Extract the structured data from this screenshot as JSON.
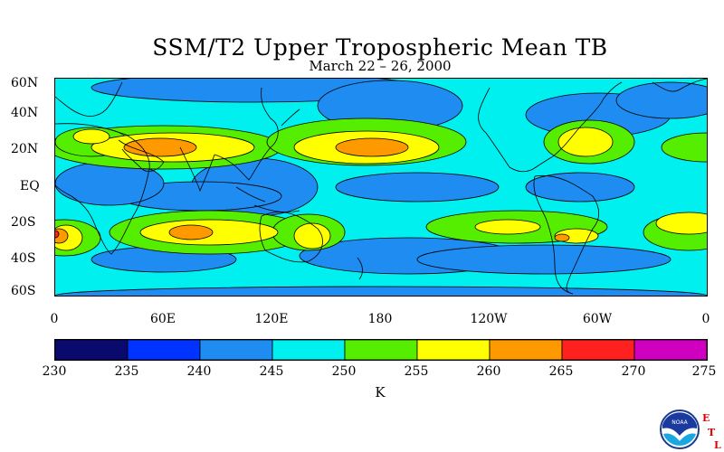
{
  "title": "SSM/T2 Upper Tropospheric Mean TB",
  "subtitle": "March 22 – 26, 2000",
  "lat_labels": [
    "60N",
    "40N",
    "20N",
    "EQ",
    "20S",
    "40S",
    "60S"
  ],
  "lon_labels": [
    "0",
    "60E",
    "120E",
    "180",
    "120W",
    "60W",
    "0"
  ],
  "colorbar": {
    "ticks": [
      "230",
      "235",
      "240",
      "245",
      "250",
      "255",
      "260",
      "265",
      "270",
      "275"
    ],
    "colors": [
      "#0a0a6e",
      "#0033ff",
      "#1e8cf0",
      "#00f0f0",
      "#55ee00",
      "#ffff00",
      "#ff9900",
      "#ff2020",
      "#d000c0"
    ],
    "units": "K"
  },
  "logo": {
    "icon": "noaa-logo",
    "text": [
      "E",
      "T",
      "L"
    ]
  },
  "map_data": {
    "background_level": 3,
    "lat_range": [
      -60,
      60
    ],
    "lon_range": [
      0,
      360
    ],
    "blobs": [
      {
        "lon": 110,
        "lat": 55,
        "rx": 90,
        "ry": 8,
        "level": 2
      },
      {
        "lon": 185,
        "lat": 45,
        "rx": 40,
        "ry": 14,
        "level": 2
      },
      {
        "lon": 300,
        "lat": 40,
        "rx": 40,
        "ry": 12,
        "level": 2
      },
      {
        "lon": 340,
        "lat": 48,
        "rx": 30,
        "ry": 10,
        "level": 2
      },
      {
        "lon": 100,
        "lat": 60,
        "rx": 10,
        "ry": 4,
        "level": 1
      },
      {
        "lon": 145,
        "lat": 59,
        "rx": 6,
        "ry": 3,
        "level": 1
      },
      {
        "lon": 110,
        "lat": 0,
        "rx": 35,
        "ry": 16,
        "level": 2
      },
      {
        "lon": 100,
        "lat": 0,
        "rx": 5,
        "ry": 3,
        "level": 1
      },
      {
        "lon": 80,
        "lat": -5,
        "rx": 45,
        "ry": 8,
        "level": 2
      },
      {
        "lon": 30,
        "lat": 2,
        "rx": 30,
        "ry": 12,
        "level": 2
      },
      {
        "lon": 200,
        "lat": 0,
        "rx": 45,
        "ry": 8,
        "level": 2
      },
      {
        "lon": 290,
        "lat": 0,
        "rx": 30,
        "ry": 8,
        "level": 2
      },
      {
        "lon": 292,
        "lat": 0,
        "rx": 3,
        "ry": 2,
        "level": 1
      },
      {
        "lon": 195,
        "lat": -38,
        "rx": 60,
        "ry": 10,
        "level": 2
      },
      {
        "lon": 270,
        "lat": -40,
        "rx": 70,
        "ry": 8,
        "level": 2
      },
      {
        "lon": 60,
        "lat": -40,
        "rx": 40,
        "ry": 7,
        "level": 2
      },
      {
        "lon": 180,
        "lat": -60,
        "rx": 180,
        "ry": 5,
        "level": 2
      },
      {
        "lon": 60,
        "lat": 22,
        "rx": 65,
        "ry": 12,
        "level": 4
      },
      {
        "lon": 20,
        "lat": 25,
        "rx": 20,
        "ry": 8,
        "level": 4
      },
      {
        "lon": 172,
        "lat": 25,
        "rx": 55,
        "ry": 13,
        "level": 4
      },
      {
        "lon": 295,
        "lat": 25,
        "rx": 25,
        "ry": 12,
        "level": 4
      },
      {
        "lon": 360,
        "lat": 22,
        "rx": 25,
        "ry": 8,
        "level": 4
      },
      {
        "lon": 85,
        "lat": -25,
        "rx": 55,
        "ry": 12,
        "level": 4
      },
      {
        "lon": 140,
        "lat": -25,
        "rx": 20,
        "ry": 10,
        "level": 4
      },
      {
        "lon": 5,
        "lat": -28,
        "rx": 20,
        "ry": 10,
        "level": 4
      },
      {
        "lon": 255,
        "lat": -22,
        "rx": 50,
        "ry": 9,
        "level": 4
      },
      {
        "lon": 350,
        "lat": -25,
        "rx": 25,
        "ry": 10,
        "level": 4
      },
      {
        "lon": 65,
        "lat": 22,
        "rx": 45,
        "ry": 8,
        "level": 5
      },
      {
        "lon": 20,
        "lat": 28,
        "rx": 10,
        "ry": 4,
        "level": 5
      },
      {
        "lon": 172,
        "lat": 22,
        "rx": 40,
        "ry": 9,
        "level": 5
      },
      {
        "lon": 293,
        "lat": 25,
        "rx": 15,
        "ry": 8,
        "level": 5
      },
      {
        "lon": 85,
        "lat": -25,
        "rx": 38,
        "ry": 7,
        "level": 5
      },
      {
        "lon": 142,
        "lat": -27,
        "rx": 10,
        "ry": 7,
        "level": 5
      },
      {
        "lon": 6,
        "lat": -28,
        "rx": 9,
        "ry": 7,
        "level": 5
      },
      {
        "lon": 250,
        "lat": -22,
        "rx": 18,
        "ry": 4,
        "level": 5
      },
      {
        "lon": 288,
        "lat": -27,
        "rx": 12,
        "ry": 4,
        "level": 5
      },
      {
        "lon": 350,
        "lat": -20,
        "rx": 18,
        "ry": 6,
        "level": 5
      },
      {
        "lon": 58,
        "lat": 22,
        "rx": 20,
        "ry": 5,
        "level": 6
      },
      {
        "lon": 175,
        "lat": 22,
        "rx": 20,
        "ry": 5,
        "level": 6
      },
      {
        "lon": 75,
        "lat": -25,
        "rx": 12,
        "ry": 4,
        "level": 6
      },
      {
        "lon": 2,
        "lat": -27,
        "rx": 5,
        "ry": 4,
        "level": 6
      },
      {
        "lon": 280,
        "lat": -28,
        "rx": 4,
        "ry": 2,
        "level": 6
      },
      {
        "lon": 0,
        "lat": -26,
        "rx": 2,
        "ry": 2,
        "level": 7
      }
    ]
  }
}
